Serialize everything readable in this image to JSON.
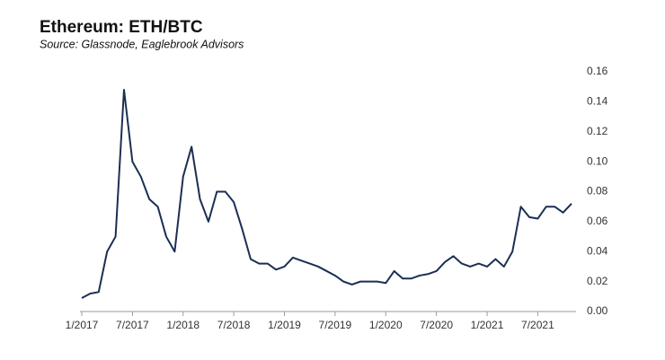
{
  "chart_data": {
    "type": "line",
    "title": "Ethereum: ETH/BTC",
    "subtitle": "Source: Glassnode, Eaglebrook Advisors",
    "x": [
      "2017-01",
      "2017-02",
      "2017-03",
      "2017-04",
      "2017-05",
      "2017-06",
      "2017-07",
      "2017-08",
      "2017-09",
      "2017-10",
      "2017-11",
      "2017-12",
      "2018-01",
      "2018-02",
      "2018-03",
      "2018-04",
      "2018-05",
      "2018-06",
      "2018-07",
      "2018-08",
      "2018-09",
      "2018-10",
      "2018-11",
      "2018-12",
      "2019-01",
      "2019-02",
      "2019-03",
      "2019-04",
      "2019-05",
      "2019-06",
      "2019-07",
      "2019-08",
      "2019-09",
      "2019-10",
      "2019-11",
      "2019-12",
      "2020-01",
      "2020-02",
      "2020-03",
      "2020-04",
      "2020-05",
      "2020-06",
      "2020-07",
      "2020-08",
      "2020-09",
      "2020-10",
      "2020-11",
      "2020-12",
      "2021-01",
      "2021-02",
      "2021-03",
      "2021-04",
      "2021-05",
      "2021-06",
      "2021-07",
      "2021-08",
      "2021-09",
      "2021-10",
      "2021-11"
    ],
    "series": [
      {
        "name": "ETH/BTC",
        "color": "#1b2f54",
        "values": [
          0.009,
          0.012,
          0.013,
          0.04,
          0.05,
          0.148,
          0.1,
          0.09,
          0.075,
          0.07,
          0.05,
          0.04,
          0.09,
          0.11,
          0.075,
          0.06,
          0.08,
          0.08,
          0.073,
          0.055,
          0.035,
          0.032,
          0.032,
          0.028,
          0.03,
          0.036,
          0.034,
          0.032,
          0.03,
          0.027,
          0.024,
          0.02,
          0.018,
          0.02,
          0.02,
          0.02,
          0.019,
          0.027,
          0.022,
          0.022,
          0.024,
          0.025,
          0.027,
          0.033,
          0.037,
          0.032,
          0.03,
          0.032,
          0.03,
          0.035,
          0.03,
          0.04,
          0.07,
          0.063,
          0.062,
          0.07,
          0.07,
          0.066,
          0.072
        ]
      }
    ],
    "xlim": [
      "2017-01",
      "2021-11"
    ],
    "xticks": [
      {
        "value": "2017-01",
        "label": "1/2017"
      },
      {
        "value": "2017-07",
        "label": "7/2017"
      },
      {
        "value": "2018-01",
        "label": "1/2018"
      },
      {
        "value": "2018-07",
        "label": "7/2018"
      },
      {
        "value": "2019-01",
        "label": "1/2019"
      },
      {
        "value": "2019-07",
        "label": "7/2019"
      },
      {
        "value": "2020-01",
        "label": "1/2020"
      },
      {
        "value": "2020-07",
        "label": "7/2020"
      },
      {
        "value": "2021-01",
        "label": "1/2021"
      },
      {
        "value": "2021-07",
        "label": "7/2021"
      }
    ],
    "ylim": [
      0,
      0.16
    ],
    "yticks": [
      {
        "value": 0,
        "label": "0.00"
      },
      {
        "value": 0.02,
        "label": "0.02"
      },
      {
        "value": 0.04,
        "label": "0.04"
      },
      {
        "value": 0.06,
        "label": "0.06"
      },
      {
        "value": 0.08,
        "label": "0.08"
      },
      {
        "value": 0.1,
        "label": "0.10"
      },
      {
        "value": 0.12,
        "label": "0.12"
      },
      {
        "value": 0.14,
        "label": "0.14"
      },
      {
        "value": 0.16,
        "label": "0.16"
      }
    ],
    "y_axis_side": "right"
  }
}
